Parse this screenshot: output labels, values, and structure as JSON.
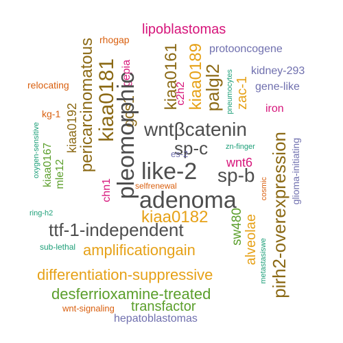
{
  "colors": {
    "gray": "#4d4d4d",
    "olive": "#8b6914",
    "orange": "#e6a117",
    "green": "#5a9e2a",
    "magenta": "#d6147a",
    "purple": "#6f6fae",
    "teal": "#1b9e77",
    "rust": "#d95f0e"
  },
  "words": {
    "lipoblastomas": "lipoblastomas",
    "rhogap": "rhogap",
    "pericarcinomatous": "pericarcinomatous",
    "kiaa0161": "kiaa0161",
    "kiaa0189": "kiaa0189",
    "protooncogene": "protooncogene",
    "relocating": "relocating",
    "gepia": "gepia",
    "gcs1": "gcs1",
    "c2h2": "c2h2",
    "palgl2": "palgl2",
    "pneumocytes": "pneumocytes",
    "kidney_293": "kidney-293",
    "gene_like": "gene-like",
    "zac_1": "zac-1",
    "kg_1": "kg-1",
    "kiaa0181": "kiaa0181",
    "pleomorphic": "pleomorphic",
    "iron": "iron",
    "wnt_catenin": "wntβcatenin",
    "kiaa0192": "kiaa0192",
    "oxygen_sensitive": "oxygen-sensitive",
    "kiaa0167": "kiaa0167",
    "sp_c": "sp-c",
    "zn_finger": "zn-finger",
    "es_2": "es-2",
    "mle12": "mle12",
    "wnt6": "wnt6",
    "like_2": "like-2",
    "sp_b": "sp-b",
    "glioma_initiating": "glioma-initiating",
    "pirh2_overexpression": "pirh2-overexpression",
    "chn1": "chn1",
    "selfrenewal": "selfrenewal",
    "adenoma": "adenoma",
    "cosmic": "cosmic",
    "ring_h2": "ring-h2",
    "kiaa0182": "kiaa0182",
    "sw480": "sw480",
    "alveolae": "alveolae",
    "ttf_1_independent": "ttf-1-independent",
    "metastasiswe": "metastasiswe",
    "sub_lethal": "sub-lethal",
    "amplificationgain": "amplificationgain",
    "differentiation_suppressive": "differentiation-suppressive",
    "desferrioxamine_treated": "desferrioxamine-treated",
    "transfactor": "transfactor",
    "wnt_signaling": "wnt-signaling",
    "hepatoblastomas": "hepatoblastomas"
  }
}
